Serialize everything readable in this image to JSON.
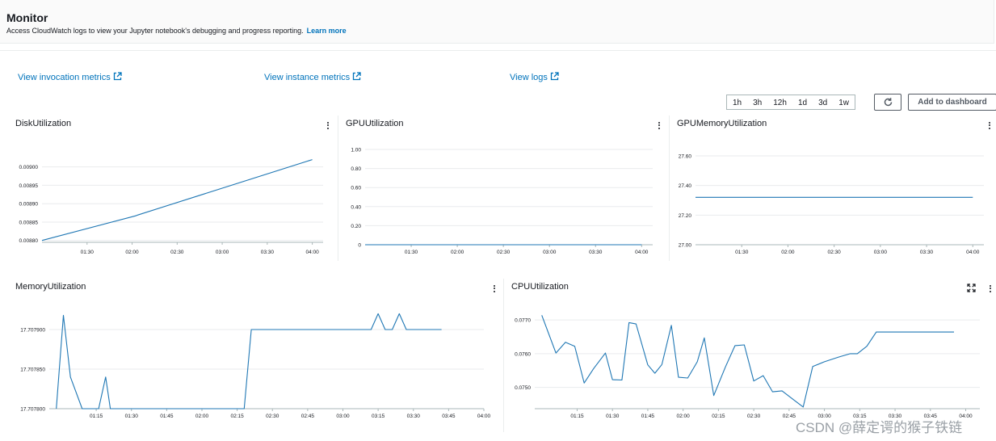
{
  "header": {
    "title": "Monitor",
    "description": "Access CloudWatch logs to view your Jupyter notebook's debugging and progress reporting.",
    "learn_more": "Learn more"
  },
  "links": {
    "invocation": "View invocation metrics",
    "instance": "View instance metrics",
    "logs": "View logs"
  },
  "toolbar": {
    "ranges": [
      "1h",
      "3h",
      "12h",
      "1d",
      "3d",
      "1w"
    ],
    "add_dashboard": "Add to dashboard"
  },
  "watermark": "CSDN @薛定谔的猴子铁链",
  "colors": {
    "line": "#1f77b4",
    "link": "#0073bb",
    "grid": "#e9ebed"
  },
  "chart_data": [
    {
      "type": "line",
      "title": "DiskUtilization",
      "yticks": [
        "0.00900",
        "0.00895",
        "0.00890",
        "0.00885",
        "0.00880"
      ],
      "ylim": [
        0.008795,
        0.00903
      ],
      "xticks": [
        "01:30",
        "02:00",
        "02:30",
        "03:00",
        "03:30",
        "04:00"
      ],
      "xlim": [
        1.0,
        4.12
      ],
      "x": [
        1.0,
        2.04,
        2.06,
        4.0
      ],
      "y": [
        0.0088,
        0.008867,
        0.008869,
        0.00902
      ]
    },
    {
      "type": "line",
      "title": "GPUUtilization",
      "yticks": [
        "1.00",
        "0.80",
        "0.60",
        "0.40",
        "0.20",
        "0"
      ],
      "ylim": [
        0,
        1.0
      ],
      "xticks": [
        "01:30",
        "02:00",
        "02:30",
        "03:00",
        "03:30",
        "04:00"
      ],
      "xlim": [
        1.0,
        4.12
      ],
      "x": [
        1.0,
        4.0
      ],
      "y": [
        0,
        0
      ]
    },
    {
      "type": "line",
      "title": "GPUMemoryUtilization",
      "yticks": [
        "27.60",
        "27.40",
        "27.20",
        "27.00"
      ],
      "ylim": [
        27.0,
        27.6
      ],
      "xticks": [
        "01:30",
        "02:00",
        "02:30",
        "03:00",
        "03:30",
        "04:00"
      ],
      "xlim": [
        1.0,
        4.12
      ],
      "x": [
        1.0,
        4.0
      ],
      "y": [
        27.32,
        27.32
      ]
    },
    {
      "type": "line",
      "title": "MemoryUtilization",
      "yticks": [
        "17.707900",
        "17.707850",
        "17.707800"
      ],
      "ylim": [
        17.7078,
        17.7079
      ],
      "xticks": [
        "01:15",
        "01:30",
        "01:45",
        "02:00",
        "02:15",
        "02:30",
        "02:45",
        "03:00",
        "03:15",
        "03:30",
        "03:45",
        "04:00"
      ],
      "xlim": [
        0.917,
        4.0
      ],
      "x": [
        0.967,
        1.017,
        1.067,
        1.15,
        1.267,
        1.317,
        1.35,
        1.4,
        2.3,
        2.35,
        3.2,
        3.25,
        3.3,
        3.35,
        3.4,
        3.45,
        3.5,
        3.6,
        3.65,
        3.7
      ],
      "y": [
        17.7078,
        17.707918,
        17.70784,
        17.7078,
        17.7078,
        17.70784,
        17.7078,
        17.7078,
        17.7078,
        17.7079,
        17.7079,
        17.70792,
        17.7079,
        17.7079,
        17.70792,
        17.7079,
        17.7079,
        17.7079,
        17.7079,
        17.7079
      ]
    },
    {
      "type": "line",
      "title": "CPUUtilization",
      "yticks": [
        "0.0770",
        "0.0760",
        "0.0750"
      ],
      "ylim": [
        0.07437,
        0.07717
      ],
      "xticks": [
        "01:15",
        "01:30",
        "01:45",
        "02:00",
        "02:15",
        "02:30",
        "02:45",
        "03:00",
        "03:15",
        "03:30",
        "03:45",
        "04:00"
      ],
      "xlim": [
        0.95,
        4.1
      ],
      "x": [
        1.0,
        1.1,
        1.167,
        1.233,
        1.3,
        1.367,
        1.45,
        1.5,
        1.567,
        1.617,
        1.667,
        1.75,
        1.8,
        1.85,
        1.917,
        1.967,
        2.033,
        2.1,
        2.15,
        2.217,
        2.3,
        2.367,
        2.433,
        2.5,
        2.567,
        2.633,
        2.7,
        2.783,
        2.85,
        2.917,
        3.0,
        3.1,
        3.183,
        3.233,
        3.3,
        3.367,
        3.417,
        3.5,
        3.583,
        3.633,
        3.75,
        3.917
      ],
      "y": [
        0.07714,
        0.07602,
        0.07634,
        0.07622,
        0.07513,
        0.07556,
        0.07602,
        0.07523,
        0.07522,
        0.07692,
        0.07688,
        0.07567,
        0.07542,
        0.07568,
        0.07684,
        0.0753,
        0.07528,
        0.07576,
        0.07647,
        0.07476,
        0.07561,
        0.07624,
        0.07626,
        0.07519,
        0.07535,
        0.07487,
        0.0749,
        0.07463,
        0.07442,
        0.07562,
        0.07576,
        0.0759,
        0.076,
        0.076,
        0.07622,
        0.07664,
        0.07664,
        0.07664,
        0.07664,
        0.07664,
        0.07664,
        0.07664
      ]
    }
  ]
}
